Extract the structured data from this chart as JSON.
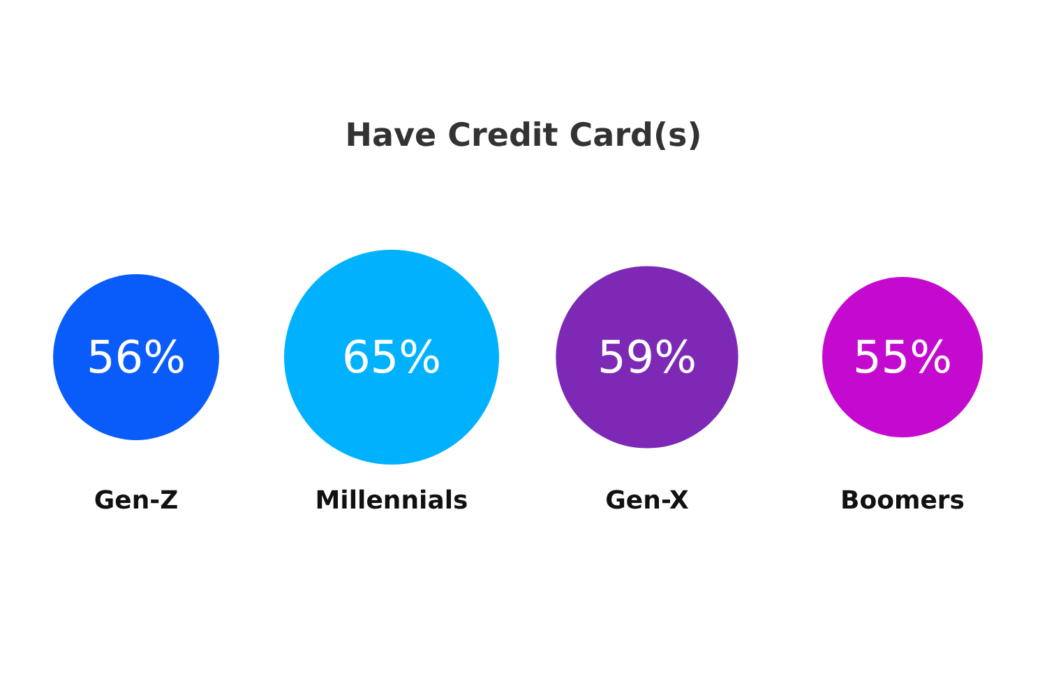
{
  "chart_data": {
    "type": "other",
    "title": "Have Credit Card(s)",
    "categories": [
      "Gen-Z",
      "Millennials",
      "Gen-X",
      "Boomers"
    ],
    "values": [
      56,
      65,
      59,
      55
    ],
    "value_labels": [
      "56%",
      "65%",
      "59%",
      "55%"
    ],
    "colors": [
      "#0a5cfa",
      "#00b2fd",
      "#7d29b6",
      "#c50ad0"
    ]
  }
}
